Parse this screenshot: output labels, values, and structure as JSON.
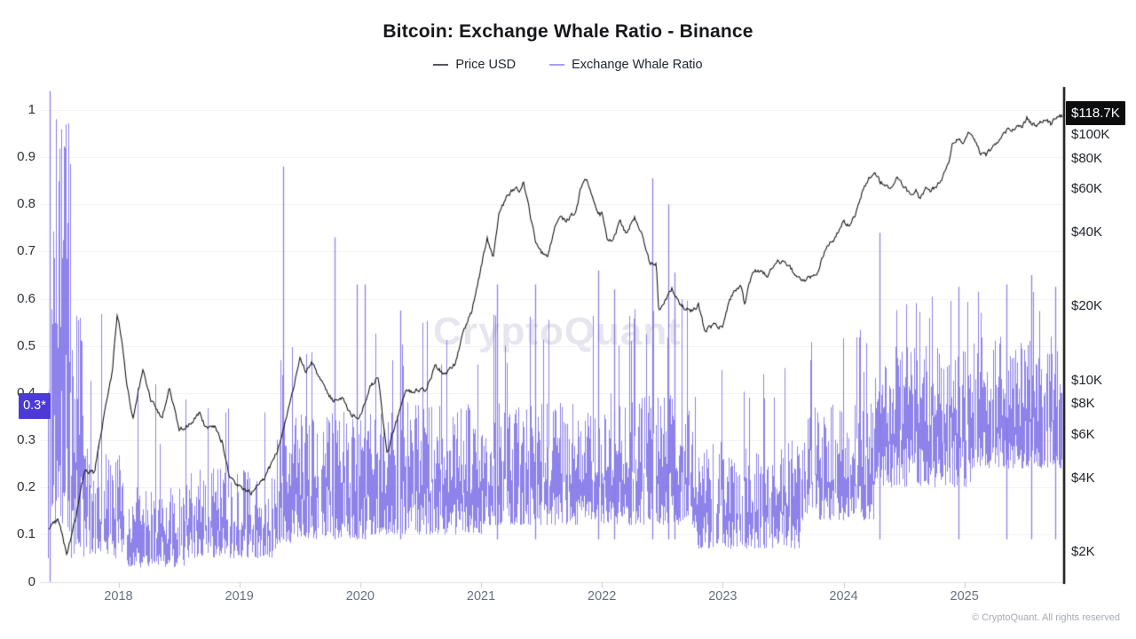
{
  "header": {
    "title": "Bitcoin: Exchange Whale Ratio - Binance",
    "legend": [
      {
        "label": "Price USD",
        "color": "#55565e"
      },
      {
        "label": "Exchange Whale Ratio",
        "color": "#a89df3"
      }
    ]
  },
  "watermark": "CryptoQuant",
  "badges": {
    "price": "$118.7K",
    "ratio": "0.3*"
  },
  "footer": {
    "copyright": "© CryptoQuant. All rights reserved"
  },
  "colors": {
    "ratio_line": "#8478e8",
    "price_line": "#17181c",
    "ratio_badge_bg": "#4b3ad6",
    "price_badge_bg": "#0c0d0f",
    "gridline": "#f0f0f4",
    "axis_bottom": "#dfe1e6",
    "axis_right": "#111111"
  },
  "chart_data": {
    "type": "line",
    "title": "Bitcoin: Exchange Whale Ratio - Binance",
    "x_axis": {
      "tick_labels": [
        "2018",
        "2019",
        "2020",
        "2021",
        "2022",
        "2023",
        "2024",
        "2025"
      ],
      "tick_years": [
        2018,
        2019,
        2020,
        2021,
        2022,
        2023,
        2024,
        2025
      ],
      "range_years": [
        2017.35,
        2025.81
      ],
      "grid": false
    },
    "y_left": {
      "name": "Exchange Whale Ratio",
      "tick_labels": [
        "1",
        "0.9",
        "0.8",
        "0.7",
        "0.6",
        "0.5",
        "0.4",
        "0.3",
        "0.2",
        "0.1",
        "0"
      ],
      "tick_values": [
        1,
        0.9,
        0.8,
        0.7,
        0.6,
        0.5,
        0.4,
        0.3,
        0.2,
        0.1,
        0
      ],
      "range": [
        0,
        1.045
      ],
      "grid": true
    },
    "y_right": {
      "name": "Price USD",
      "scale": "log",
      "tick_labels": [
        "$100K",
        "$80K",
        "$60K",
        "$40K",
        "$20K",
        "$10K",
        "$8K",
        "$6K",
        "$4K",
        "$2K"
      ],
      "tick_values": [
        100000,
        80000,
        60000,
        40000,
        20000,
        10000,
        8000,
        6000,
        4000,
        2000
      ],
      "range": [
        1500,
        140000
      ]
    },
    "legend_position": "top-center",
    "annotations": {
      "last_price": 118700,
      "last_price_label": "$118.7K",
      "last_ratio": 0.37,
      "last_ratio_label": "0.3*"
    },
    "series": [
      {
        "name": "Price USD",
        "color": "#17181c",
        "points": [
          [
            2017.42,
            2500
          ],
          [
            2017.5,
            2750
          ],
          [
            2017.57,
            1950
          ],
          [
            2017.65,
            2800
          ],
          [
            2017.72,
            4300
          ],
          [
            2017.8,
            4200
          ],
          [
            2017.88,
            7200
          ],
          [
            2017.95,
            11000
          ],
          [
            2017.99,
            19000
          ],
          [
            2018.03,
            14500
          ],
          [
            2018.07,
            9500
          ],
          [
            2018.12,
            7000
          ],
          [
            2018.2,
            11000
          ],
          [
            2018.27,
            8300
          ],
          [
            2018.36,
            7000
          ],
          [
            2018.42,
            9300
          ],
          [
            2018.5,
            6300
          ],
          [
            2018.58,
            6600
          ],
          [
            2018.67,
            7400
          ],
          [
            2018.72,
            6400
          ],
          [
            2018.8,
            6400
          ],
          [
            2018.86,
            5600
          ],
          [
            2018.92,
            4000
          ],
          [
            2019.0,
            3700
          ],
          [
            2019.1,
            3500
          ],
          [
            2019.2,
            3950
          ],
          [
            2019.32,
            5200
          ],
          [
            2019.42,
            8000
          ],
          [
            2019.5,
            12500
          ],
          [
            2019.55,
            10800
          ],
          [
            2019.6,
            11800
          ],
          [
            2019.68,
            9800
          ],
          [
            2019.78,
            8200
          ],
          [
            2019.85,
            8500
          ],
          [
            2019.92,
            7200
          ],
          [
            2020.0,
            7200
          ],
          [
            2020.08,
            9400
          ],
          [
            2020.15,
            10300
          ],
          [
            2020.22,
            5000
          ],
          [
            2020.3,
            6800
          ],
          [
            2020.38,
            9000
          ],
          [
            2020.45,
            9100
          ],
          [
            2020.55,
            9200
          ],
          [
            2020.62,
            11500
          ],
          [
            2020.7,
            10500
          ],
          [
            2020.78,
            11500
          ],
          [
            2020.85,
            15500
          ],
          [
            2020.92,
            19000
          ],
          [
            2021.0,
            29000
          ],
          [
            2021.05,
            38000
          ],
          [
            2021.1,
            32000
          ],
          [
            2021.15,
            48000
          ],
          [
            2021.22,
            57000
          ],
          [
            2021.28,
            61000
          ],
          [
            2021.32,
            59000
          ],
          [
            2021.35,
            63500
          ],
          [
            2021.4,
            49000
          ],
          [
            2021.45,
            37000
          ],
          [
            2021.5,
            33500
          ],
          [
            2021.55,
            31500
          ],
          [
            2021.6,
            40000
          ],
          [
            2021.65,
            47000
          ],
          [
            2021.7,
            44500
          ],
          [
            2021.78,
            48800
          ],
          [
            2021.83,
            61500
          ],
          [
            2021.87,
            66900
          ],
          [
            2021.92,
            57000
          ],
          [
            2021.97,
            47000
          ],
          [
            2022.0,
            47500
          ],
          [
            2022.05,
            36800
          ],
          [
            2022.1,
            38500
          ],
          [
            2022.15,
            44000
          ],
          [
            2022.2,
            39500
          ],
          [
            2022.27,
            46500
          ],
          [
            2022.33,
            39000
          ],
          [
            2022.4,
            30000
          ],
          [
            2022.45,
            29500
          ],
          [
            2022.47,
            19000
          ],
          [
            2022.53,
            21500
          ],
          [
            2022.58,
            24000
          ],
          [
            2022.62,
            21500
          ],
          [
            2022.68,
            19800
          ],
          [
            2022.75,
            19300
          ],
          [
            2022.8,
            20300
          ],
          [
            2022.85,
            16000
          ],
          [
            2022.92,
            16800
          ],
          [
            2023.0,
            16600
          ],
          [
            2023.05,
            21000
          ],
          [
            2023.1,
            23000
          ],
          [
            2023.15,
            24500
          ],
          [
            2023.18,
            20200
          ],
          [
            2023.25,
            28300
          ],
          [
            2023.3,
            27800
          ],
          [
            2023.37,
            26800
          ],
          [
            2023.45,
            30500
          ],
          [
            2023.5,
            30300
          ],
          [
            2023.55,
            29300
          ],
          [
            2023.62,
            26000
          ],
          [
            2023.7,
            25900
          ],
          [
            2023.78,
            27000
          ],
          [
            2023.85,
            34500
          ],
          [
            2023.92,
            37800
          ],
          [
            2024.0,
            44000
          ],
          [
            2024.05,
            42800
          ],
          [
            2024.1,
            48000
          ],
          [
            2024.17,
            62000
          ],
          [
            2024.22,
            68000
          ],
          [
            2024.25,
            70000
          ],
          [
            2024.3,
            64500
          ],
          [
            2024.38,
            61000
          ],
          [
            2024.45,
            67000
          ],
          [
            2024.5,
            61000
          ],
          [
            2024.55,
            56500
          ],
          [
            2024.6,
            59000
          ],
          [
            2024.63,
            54500
          ],
          [
            2024.68,
            60500
          ],
          [
            2024.72,
            58000
          ],
          [
            2024.78,
            63000
          ],
          [
            2024.82,
            67500
          ],
          [
            2024.87,
            75500
          ],
          [
            2024.9,
            91000
          ],
          [
            2024.95,
            97000
          ],
          [
            2025.0,
            94500
          ],
          [
            2025.03,
            102000
          ],
          [
            2025.08,
            96500
          ],
          [
            2025.13,
            84500
          ],
          [
            2025.18,
            83000
          ],
          [
            2025.22,
            87500
          ],
          [
            2025.28,
            94500
          ],
          [
            2025.33,
            104500
          ],
          [
            2025.38,
            103500
          ],
          [
            2025.42,
            108500
          ],
          [
            2025.47,
            107000
          ],
          [
            2025.52,
            117500
          ],
          [
            2025.55,
            112000
          ],
          [
            2025.6,
            109500
          ],
          [
            2025.63,
            113000
          ],
          [
            2025.68,
            115500
          ],
          [
            2025.72,
            110500
          ],
          [
            2025.76,
            117000
          ],
          [
            2025.8,
            118700
          ]
        ]
      },
      {
        "name": "Exchange Whale Ratio",
        "color": "#8478e8",
        "seed": 1337,
        "last_value": 0.37,
        "envelope": [
          [
            2017.4,
            2017.45,
            0.02,
            0.95,
            0.45,
            0.15,
            1.02
          ],
          [
            2017.45,
            2017.6,
            0.1,
            1.0,
            1.0,
            0.05,
            1.0
          ],
          [
            2017.6,
            2017.72,
            0.05,
            0.6,
            0.85,
            0.1,
            1.0
          ],
          [
            2017.72,
            2018.05,
            0.05,
            0.3,
            0.85,
            0.08,
            0.58
          ],
          [
            2018.05,
            2018.55,
            0.03,
            0.2,
            0.8,
            0.05,
            0.42
          ],
          [
            2018.55,
            2019.3,
            0.05,
            0.24,
            0.85,
            0.06,
            0.42
          ],
          [
            2019.3,
            2019.45,
            0.08,
            0.34,
            0.9,
            0.1,
            0.5
          ],
          [
            2019.45,
            2020.05,
            0.09,
            0.36,
            0.9,
            0.08,
            0.53
          ],
          [
            2020.05,
            2021.0,
            0.1,
            0.38,
            0.92,
            0.09,
            0.56
          ],
          [
            2021.0,
            2022.0,
            0.12,
            0.38,
            0.92,
            0.09,
            0.57
          ],
          [
            2022.0,
            2022.75,
            0.12,
            0.4,
            0.92,
            0.09,
            0.6
          ],
          [
            2022.75,
            2023.65,
            0.07,
            0.3,
            0.9,
            0.07,
            0.46
          ],
          [
            2023.65,
            2024.25,
            0.13,
            0.38,
            0.92,
            0.08,
            0.54
          ],
          [
            2024.25,
            2025.05,
            0.2,
            0.5,
            0.96,
            0.09,
            0.62
          ],
          [
            2025.05,
            2025.81,
            0.24,
            0.52,
            0.96,
            0.09,
            0.64
          ]
        ],
        "spikes": [
          [
            2017.43,
            1.04,
            0.0
          ],
          [
            2019.36,
            0.88
          ],
          [
            2019.79,
            0.73
          ],
          [
            2019.97,
            0.63
          ],
          [
            2020.04,
            0.63
          ],
          [
            2020.33,
            0.575
          ],
          [
            2021.13,
            0.63
          ],
          [
            2021.45,
            0.63
          ],
          [
            2021.97,
            0.66
          ],
          [
            2022.1,
            0.62
          ],
          [
            2022.42,
            0.855
          ],
          [
            2022.55,
            0.8
          ],
          [
            2022.6,
            0.655
          ],
          [
            2024.3,
            0.74
          ],
          [
            2024.95,
            0.625
          ],
          [
            2025.35,
            0.63
          ],
          [
            2025.55,
            0.65
          ],
          [
            2025.75,
            0.625
          ]
        ]
      }
    ]
  }
}
